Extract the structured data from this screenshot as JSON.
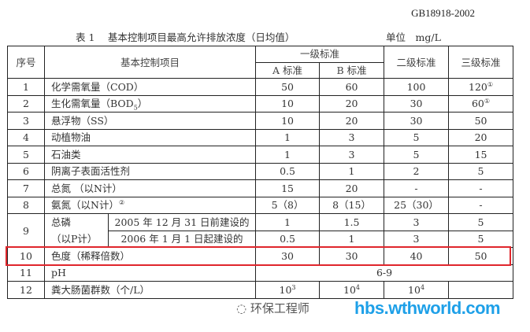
{
  "doc": {
    "standard": "GB18918-2002",
    "caption": "表 1　 基本控制项目最高允许排放浓度（日均值）",
    "unit": "单位　mg/L"
  },
  "header": {
    "no": "序号",
    "item": "基本控制项目",
    "grade1": "一级标准",
    "a": "A 标准",
    "b": "B 标准",
    "grade2": "二级标准",
    "grade3": "三级标准"
  },
  "rows": [
    {
      "no": "1",
      "item": "化学需氧量（COD）",
      "a": "50",
      "b": "60",
      "g2": "100",
      "g3": "120",
      "g3_note": "①"
    },
    {
      "no": "2",
      "item": "生化需氧量（BOD",
      "item_sub": "5",
      "item_end": "）",
      "a": "10",
      "b": "20",
      "g2": "30",
      "g3": "60",
      "g3_note": "①"
    },
    {
      "no": "3",
      "item": "悬浮物（SS）",
      "a": "10",
      "b": "20",
      "g2": "30",
      "g3": "50"
    },
    {
      "no": "4",
      "item": "动植物油",
      "a": "1",
      "b": "3",
      "g2": "5",
      "g3": "20"
    },
    {
      "no": "5",
      "item": "石油类",
      "a": "1",
      "b": "3",
      "g2": "5",
      "g3": "15"
    },
    {
      "no": "6",
      "item": "阴离子表面活性剂",
      "a": "0.5",
      "b": "1",
      "g2": "2",
      "g3": "5"
    },
    {
      "no": "7",
      "item": "总氮 （以N计）",
      "a": "15",
      "b": "20",
      "g2": "-",
      "g3": "-"
    },
    {
      "no": "8",
      "item": "氨氮（以N计）",
      "item_note": "②",
      "a": "5（8）",
      "b": "8（15）",
      "g2": "25（30）",
      "g3": "-"
    },
    {
      "no": "9",
      "item": "总磷",
      "item2": "（以P计）",
      "sub1": "2005 年 12 月 31 日前建设的",
      "a1": "1",
      "b1": "1.5",
      "g21": "3",
      "g31": "5",
      "sub2": "2006 年 1 月 1 日起建设的",
      "a2": "0.5",
      "b2": "1",
      "g22": "3",
      "g32": "5"
    },
    {
      "no": "10",
      "item": "色度（稀释倍数）",
      "a": "30",
      "b": "30",
      "g2": "40",
      "g3": "50"
    },
    {
      "no": "11",
      "item": "pH",
      "all": "6-9"
    },
    {
      "no": "12",
      "item": "粪大肠菌群数（个/L）",
      "a": "10",
      "a_exp": "3",
      "b": "10",
      "b_exp": "4",
      "g2": "10",
      "g2_exp": "4"
    }
  ],
  "watermark": {
    "account": "环保工程师",
    "site": "hbs.wthworld.com"
  },
  "highlight_color": "#e0262c"
}
